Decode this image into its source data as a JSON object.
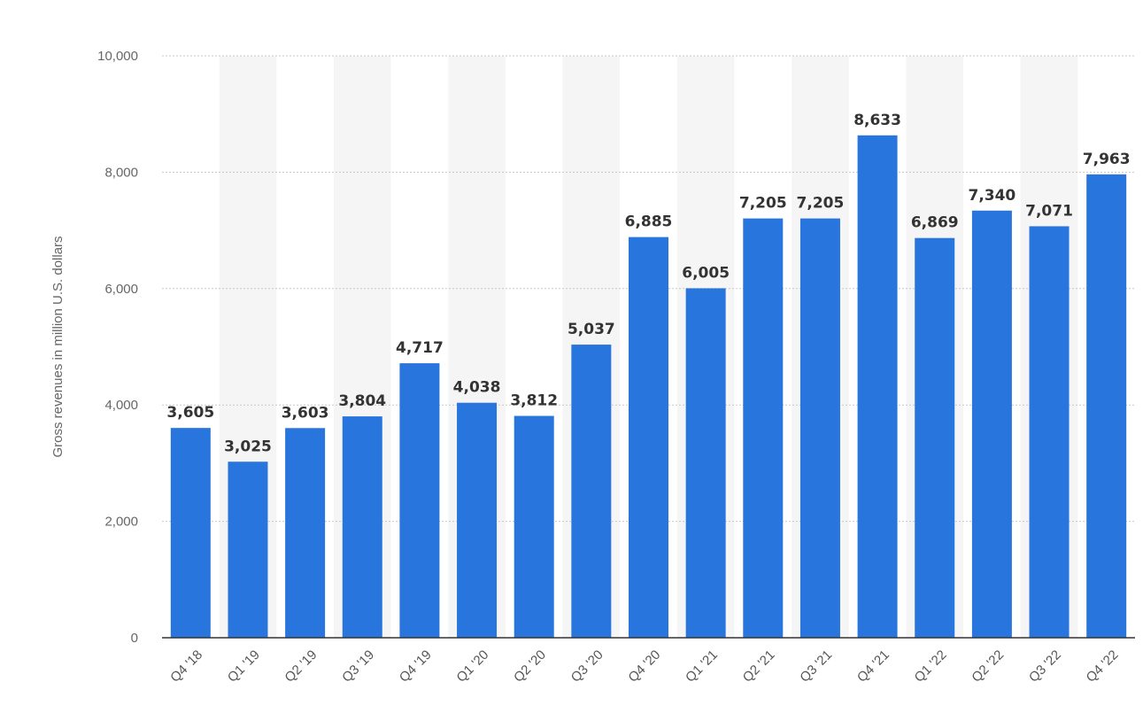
{
  "chart_data": {
    "type": "bar",
    "title": "",
    "xlabel": "",
    "ylabel": "Gross revenues in million U.S. dollars",
    "categories": [
      "Q4 '18",
      "Q1 '19",
      "Q2 '19",
      "Q3 '19",
      "Q4 '19",
      "Q1 '20",
      "Q2 '20",
      "Q3 '20",
      "Q4 '20",
      "Q1 '21",
      "Q2 '21",
      "Q3 '21",
      "Q4 '21",
      "Q1 '22",
      "Q2 '22",
      "Q3 '22",
      "Q4 '22"
    ],
    "values": [
      3605,
      3025,
      3603,
      3804,
      4717,
      4038,
      3812,
      5037,
      6885,
      6005,
      7205,
      7205,
      8633,
      6869,
      7340,
      7071,
      7963
    ],
    "value_labels": [
      "3,605",
      "3,025",
      "3,603",
      "3,804",
      "4,717",
      "4,038",
      "3,812",
      "5,037",
      "6,885",
      "6,005",
      "7,205",
      "7,205",
      "8,633",
      "6,869",
      "7,340",
      "7,071",
      "7,963"
    ],
    "ylim": [
      0,
      10000
    ],
    "yticks": [
      0,
      2000,
      4000,
      6000,
      8000,
      10000
    ],
    "ytick_labels": [
      "0",
      "2,000",
      "4,000",
      "6,000",
      "8,000",
      "10,000"
    ],
    "grid": true,
    "legend": "none",
    "colors": {
      "bar": "#2876dd",
      "band": "#f5f5f5",
      "grid": "#c8c8c8",
      "axis": "#333333"
    }
  }
}
